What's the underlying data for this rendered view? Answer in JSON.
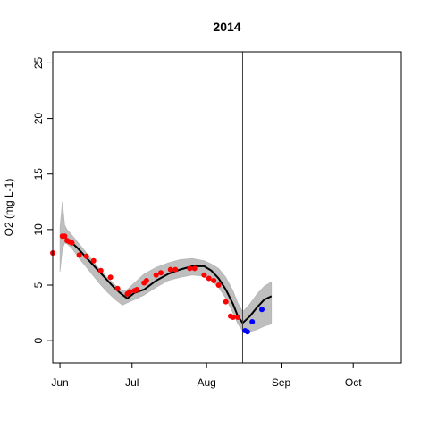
{
  "chart_data": {
    "type": "line",
    "title": "2014",
    "xlabel": "",
    "ylabel": "O2 (mg L-1)",
    "x_ticks": [
      "Jun",
      "Jul",
      "Aug",
      "Sep",
      "Oct"
    ],
    "x_tick_days": [
      0,
      30,
      61,
      92,
      122
    ],
    "xlim_days": [
      -3,
      142
    ],
    "y_ticks": [
      0,
      5,
      10,
      15,
      20,
      25
    ],
    "ylim": [
      -2,
      26
    ],
    "grid": false,
    "legend": "none",
    "forecast_start_day": 76,
    "ensemble_band": {
      "days": [
        0,
        1,
        2,
        3,
        5,
        8,
        11,
        14,
        17,
        20,
        23,
        26,
        28,
        31,
        35,
        40,
        45,
        50,
        55,
        60,
        63,
        66,
        69,
        72,
        74,
        76,
        79,
        82,
        85,
        88
      ],
      "lower": [
        6.2,
        8.2,
        8.8,
        8.7,
        8.3,
        7.4,
        6.6,
        5.8,
        5.0,
        4.3,
        3.7,
        3.2,
        3.4,
        3.7,
        4.1,
        4.8,
        5.4,
        5.7,
        5.9,
        5.8,
        5.4,
        4.8,
        3.8,
        2.5,
        1.5,
        0.9,
        0.8,
        1.0,
        1.3,
        1.5
      ],
      "upper": [
        10.2,
        12.5,
        10.4,
        10.0,
        9.5,
        8.7,
        7.9,
        7.1,
        6.3,
        5.6,
        5.0,
        4.5,
        4.6,
        5.2,
        6.0,
        6.6,
        7.0,
        7.3,
        7.4,
        7.2,
        6.9,
        6.5,
        5.7,
        4.5,
        3.4,
        2.6,
        3.3,
        4.2,
        4.9,
        5.3
      ]
    },
    "mean_line": {
      "x": [
        0,
        2,
        4,
        7,
        10,
        13,
        16,
        19,
        22,
        25,
        28,
        31,
        35,
        40,
        45,
        50,
        55,
        60,
        63,
        66,
        69,
        72,
        74,
        76,
        79,
        82,
        85,
        88
      ],
      "y": [
        9.4,
        9.3,
        9.0,
        8.4,
        7.7,
        7.0,
        6.3,
        5.6,
        4.9,
        4.3,
        3.8,
        4.3,
        4.6,
        5.4,
        6.0,
        6.4,
        6.7,
        6.7,
        6.3,
        5.6,
        4.6,
        3.3,
        2.2,
        1.6,
        2.2,
        3.0,
        3.7,
        4.0
      ]
    },
    "series": [
      {
        "color": "#ff0000",
        "x": [
          -3,
          1,
          2,
          3,
          4,
          5,
          8,
          11,
          14,
          17,
          21,
          24,
          28,
          29,
          31,
          32,
          35,
          36,
          40,
          42,
          46,
          48,
          54,
          56,
          60,
          62,
          64,
          66,
          69,
          71,
          72,
          74
        ],
        "y": [
          7.9,
          9.4,
          9.4,
          9.0,
          8.9,
          8.8,
          7.7,
          7.6,
          7.2,
          6.3,
          5.7,
          4.7,
          4.2,
          4.4,
          4.5,
          4.6,
          5.2,
          5.4,
          5.9,
          6.1,
          6.4,
          6.4,
          6.5,
          6.5,
          5.9,
          5.6,
          5.4,
          5.0,
          3.5,
          2.2,
          2.1,
          2.1
        ]
      },
      {
        "color": "#0000ff",
        "x": [
          77,
          78,
          80,
          84
        ],
        "y": [
          0.9,
          0.8,
          1.7,
          2.8
        ]
      }
    ],
    "colors": {
      "observed_past": "#ff0000",
      "observed_forecast": "#0000ff",
      "ensemble": "#bebebe",
      "mean": "#000000",
      "forecast_line": "#404040"
    }
  }
}
